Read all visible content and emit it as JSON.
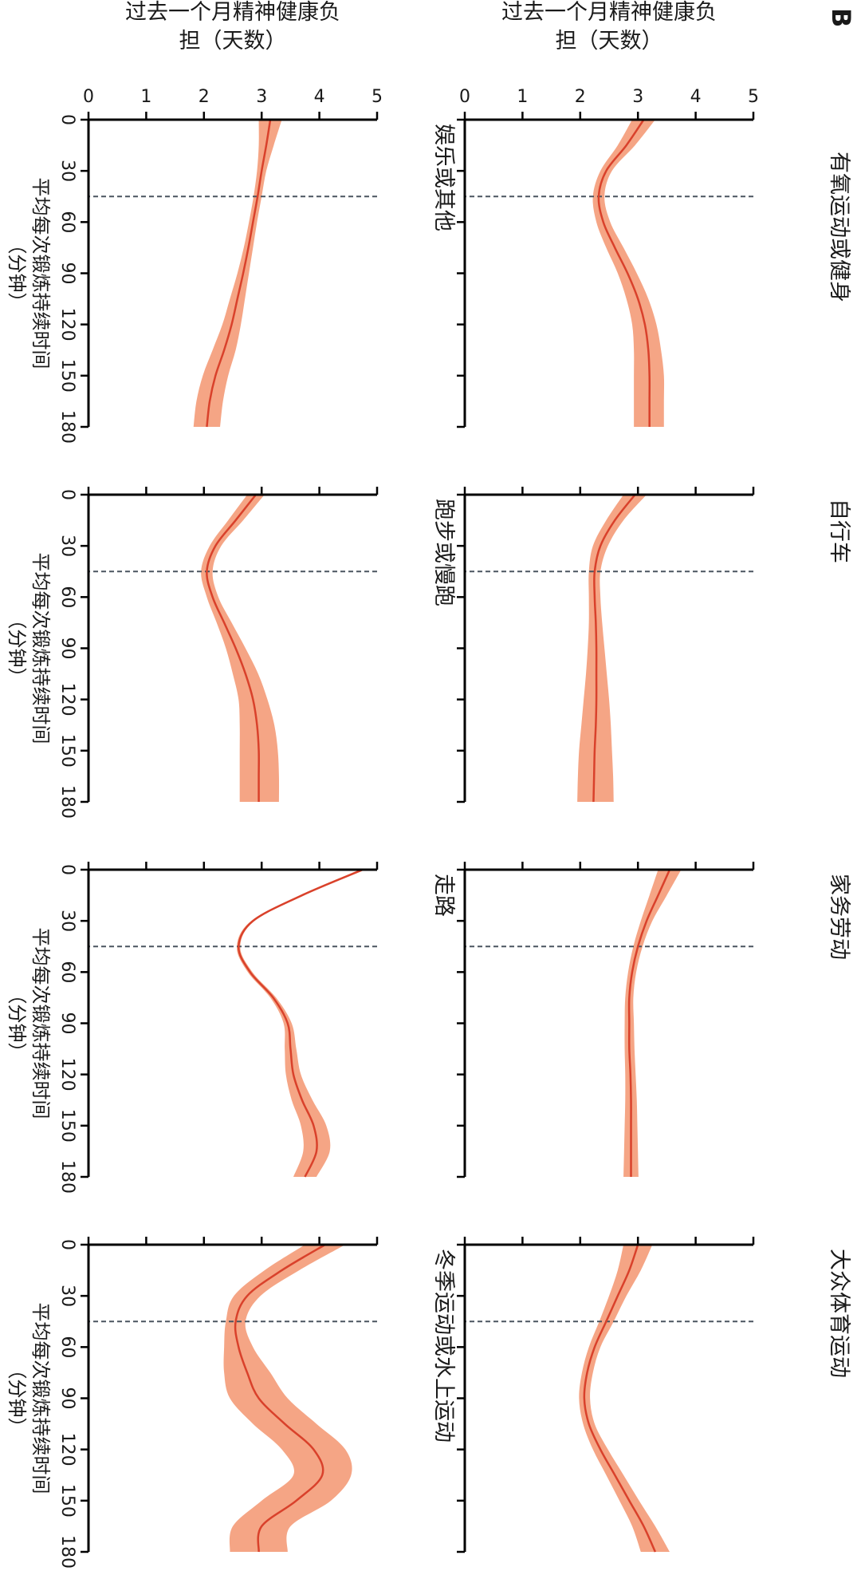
{
  "figure": {
    "panel_letter": "B",
    "ylabel_lines": [
      "过去一个月精神健康负",
      "担（天数）"
    ],
    "xlabel_lines": [
      "平均每次锻炼持续时间",
      "（分钟）"
    ],
    "colors": {
      "line": "#d9412b",
      "band": "#f5a585",
      "reference": "#4a5560",
      "axis": "#000000"
    }
  },
  "chart_data": [
    {
      "type": "line",
      "title": "有氧运动或健身",
      "xlim": [
        0,
        180
      ],
      "ylim": [
        0,
        5
      ],
      "xticks": [
        0,
        30,
        60,
        90,
        120,
        150,
        180
      ],
      "yticks": [
        0,
        1,
        2,
        3,
        4,
        5
      ],
      "reference_x": 45,
      "x": [
        0,
        15,
        30,
        45,
        60,
        75,
        90,
        105,
        120,
        135,
        150,
        165,
        180
      ],
      "y": [
        3.1,
        2.8,
        2.45,
        2.32,
        2.4,
        2.6,
        2.82,
        3.0,
        3.12,
        3.18,
        3.2,
        3.2,
        3.2
      ],
      "lower": [
        2.9,
        2.65,
        2.35,
        2.22,
        2.28,
        2.45,
        2.65,
        2.8,
        2.9,
        2.93,
        2.93,
        2.93,
        2.93
      ],
      "upper": [
        3.3,
        2.95,
        2.55,
        2.42,
        2.52,
        2.75,
        2.98,
        3.18,
        3.32,
        3.4,
        3.45,
        3.45,
        3.45
      ]
    },
    {
      "type": "line",
      "title": "自行车",
      "xlim": [
        0,
        180
      ],
      "ylim": [
        0,
        5
      ],
      "xticks": [
        0,
        30,
        60,
        90,
        120,
        150,
        180
      ],
      "yticks": [
        0,
        1,
        2,
        3,
        4,
        5
      ],
      "reference_x": 45,
      "x": [
        0,
        15,
        30,
        45,
        60,
        75,
        90,
        105,
        120,
        135,
        150,
        165,
        180
      ],
      "y": [
        2.95,
        2.6,
        2.35,
        2.25,
        2.25,
        2.27,
        2.28,
        2.28,
        2.28,
        2.27,
        2.25,
        2.24,
        2.23
      ],
      "lower": [
        2.75,
        2.45,
        2.22,
        2.15,
        2.15,
        2.15,
        2.13,
        2.1,
        2.06,
        2.02,
        1.98,
        1.96,
        1.95
      ],
      "upper": [
        3.15,
        2.75,
        2.48,
        2.35,
        2.35,
        2.38,
        2.42,
        2.46,
        2.5,
        2.53,
        2.55,
        2.57,
        2.58
      ]
    },
    {
      "type": "line",
      "title": "家务劳动",
      "xlim": [
        0,
        180
      ],
      "ylim": [
        0,
        5
      ],
      "xticks": [
        0,
        30,
        60,
        90,
        120,
        150,
        180
      ],
      "yticks": [
        0,
        1,
        2,
        3,
        4,
        5
      ],
      "reference_x": 45,
      "x": [
        0,
        15,
        30,
        45,
        60,
        75,
        90,
        105,
        120,
        135,
        150,
        165,
        180
      ],
      "y": [
        3.55,
        3.35,
        3.15,
        3.0,
        2.9,
        2.85,
        2.85,
        2.85,
        2.87,
        2.88,
        2.88,
        2.88,
        2.88
      ],
      "lower": [
        3.35,
        3.2,
        3.05,
        2.92,
        2.83,
        2.78,
        2.77,
        2.77,
        2.78,
        2.78,
        2.77,
        2.76,
        2.75
      ],
      "upper": [
        3.75,
        3.5,
        3.25,
        3.08,
        2.97,
        2.92,
        2.93,
        2.94,
        2.96,
        2.98,
        2.99,
        3.0,
        3.01
      ]
    },
    {
      "type": "line",
      "title": "大众体育运动",
      "xlim": [
        0,
        180
      ],
      "ylim": [
        0,
        5
      ],
      "xticks": [
        0,
        30,
        60,
        90,
        120,
        150,
        180
      ],
      "yticks": [
        0,
        1,
        2,
        3,
        4,
        5
      ],
      "reference_x": 45,
      "x": [
        0,
        15,
        30,
        45,
        60,
        75,
        90,
        105,
        120,
        135,
        150,
        165,
        180
      ],
      "y": [
        3.0,
        2.85,
        2.65,
        2.45,
        2.25,
        2.12,
        2.07,
        2.15,
        2.35,
        2.6,
        2.85,
        3.1,
        3.3
      ],
      "lower": [
        2.75,
        2.65,
        2.5,
        2.33,
        2.15,
        2.03,
        1.98,
        2.05,
        2.22,
        2.45,
        2.68,
        2.9,
        3.05
      ],
      "upper": [
        3.25,
        3.05,
        2.8,
        2.58,
        2.35,
        2.22,
        2.17,
        2.25,
        2.48,
        2.75,
        3.02,
        3.3,
        3.55
      ]
    },
    {
      "type": "line",
      "title": "娱乐或其他",
      "xlim": [
        0,
        180
      ],
      "ylim": [
        0,
        5
      ],
      "xticks": [
        0,
        30,
        60,
        90,
        120,
        150,
        180
      ],
      "yticks": [
        0,
        1,
        2,
        3,
        4,
        5
      ],
      "reference_x": 45,
      "x": [
        0,
        15,
        30,
        45,
        60,
        75,
        90,
        105,
        120,
        135,
        150,
        165,
        180
      ],
      "y": [
        3.15,
        3.08,
        3.0,
        2.93,
        2.85,
        2.77,
        2.68,
        2.58,
        2.48,
        2.35,
        2.2,
        2.1,
        2.05
      ],
      "lower": [
        2.95,
        2.95,
        2.92,
        2.86,
        2.78,
        2.69,
        2.58,
        2.45,
        2.32,
        2.15,
        1.98,
        1.87,
        1.82
      ],
      "upper": [
        3.35,
        3.21,
        3.08,
        3.0,
        2.92,
        2.85,
        2.78,
        2.71,
        2.64,
        2.55,
        2.42,
        2.33,
        2.28
      ]
    },
    {
      "type": "line",
      "title": "跑步或慢跑",
      "xlim": [
        0,
        180
      ],
      "ylim": [
        0,
        5
      ],
      "xticks": [
        0,
        30,
        60,
        90,
        120,
        150,
        180
      ],
      "yticks": [
        0,
        1,
        2,
        3,
        4,
        5
      ],
      "reference_x": 45,
      "x": [
        0,
        15,
        30,
        45,
        60,
        75,
        90,
        105,
        120,
        135,
        150,
        165,
        180
      ],
      "y": [
        2.9,
        2.55,
        2.2,
        2.05,
        2.15,
        2.35,
        2.55,
        2.72,
        2.85,
        2.92,
        2.95,
        2.95,
        2.95
      ],
      "lower": [
        2.75,
        2.42,
        2.1,
        1.95,
        2.05,
        2.22,
        2.38,
        2.5,
        2.6,
        2.62,
        2.62,
        2.62,
        2.62
      ],
      "upper": [
        3.05,
        2.68,
        2.3,
        2.15,
        2.25,
        2.48,
        2.72,
        2.94,
        3.1,
        3.22,
        3.28,
        3.3,
        3.3
      ]
    },
    {
      "type": "line",
      "title": "走路",
      "xlim": [
        0,
        180
      ],
      "ylim": [
        0,
        5
      ],
      "xticks": [
        0,
        30,
        60,
        90,
        120,
        150,
        180
      ],
      "yticks": [
        0,
        1,
        2,
        3,
        4,
        5
      ],
      "reference_x": 45,
      "x": [
        0,
        15,
        30,
        45,
        60,
        75,
        90,
        105,
        120,
        135,
        150,
        165,
        180
      ],
      "y": [
        4.75,
        3.7,
        2.85,
        2.6,
        2.8,
        3.2,
        3.45,
        3.5,
        3.55,
        3.7,
        3.9,
        3.95,
        3.75
      ],
      "lower": [
        4.7,
        3.66,
        2.82,
        2.57,
        2.76,
        3.15,
        3.38,
        3.4,
        3.42,
        3.52,
        3.68,
        3.72,
        3.55
      ],
      "upper": [
        4.8,
        3.74,
        2.88,
        2.63,
        2.84,
        3.25,
        3.52,
        3.6,
        3.68,
        3.88,
        4.12,
        4.18,
        3.95
      ]
    },
    {
      "type": "line",
      "title": "冬季运动或水上运动",
      "xlim": [
        0,
        180
      ],
      "ylim": [
        0,
        5
      ],
      "xticks": [
        0,
        30,
        60,
        90,
        120,
        150,
        180
      ],
      "yticks": [
        0,
        1,
        2,
        3,
        4,
        5
      ],
      "reference_x": 45,
      "x": [
        0,
        15,
        30,
        45,
        60,
        75,
        90,
        105,
        120,
        135,
        150,
        165,
        180
      ],
      "y": [
        4.1,
        3.35,
        2.75,
        2.55,
        2.6,
        2.75,
        2.95,
        3.4,
        3.9,
        4.05,
        3.6,
        3.0,
        2.95
      ],
      "lower": [
        3.75,
        3.05,
        2.52,
        2.38,
        2.35,
        2.35,
        2.45,
        2.85,
        3.35,
        3.55,
        3.0,
        2.5,
        2.45
      ],
      "upper": [
        4.45,
        3.65,
        2.98,
        2.72,
        2.85,
        3.15,
        3.45,
        3.95,
        4.45,
        4.55,
        4.2,
        3.5,
        3.45
      ]
    }
  ]
}
